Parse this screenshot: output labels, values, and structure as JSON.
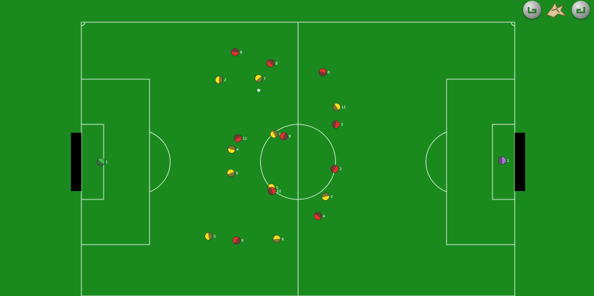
{
  "toolbar": {
    "left_button_icon": "rotate-left-icon",
    "logo_icon": "bird-logo-icon",
    "right_button_icon": "rotate-right-icon"
  },
  "colors": {
    "pitch": "#1a8a1f",
    "lines": "#d8f0d8",
    "goal": "#000000",
    "team_yellow": "#f2e21a",
    "team_red": "#e0322a",
    "keeper_left": "#3fbf4a",
    "keeper_right": "#b070e0"
  },
  "players": [
    {
      "team": "red",
      "num": "8"
    },
    {
      "team": "red",
      "num": "8"
    },
    {
      "team": "yellow",
      "num": "2"
    },
    {
      "team": "yellow",
      "num": "7"
    },
    {
      "team": "red",
      "num": "6"
    },
    {
      "team": "yellow",
      "num": "11"
    },
    {
      "team": "red",
      "num": "3"
    },
    {
      "team": "red",
      "num": "11"
    },
    {
      "team": "yellow",
      "num": "4"
    },
    {
      "team": "yellow",
      "num": "9"
    },
    {
      "team": "red",
      "num": "9"
    },
    {
      "team": "yellow",
      "num": "9"
    },
    {
      "team": "yellow",
      "num": "5"
    },
    {
      "team": "red",
      "num": "10"
    },
    {
      "team": "red",
      "num": "2"
    },
    {
      "team": "yellow",
      "num": "3"
    },
    {
      "team": "red",
      "num": "4"
    },
    {
      "team": "yellow",
      "num": "5"
    },
    {
      "team": "red",
      "num": "6"
    },
    {
      "team": "yellow",
      "num": "6"
    },
    {
      "team": "keeper_left",
      "num": "1"
    },
    {
      "team": "keeper_right",
      "num": "1"
    }
  ]
}
